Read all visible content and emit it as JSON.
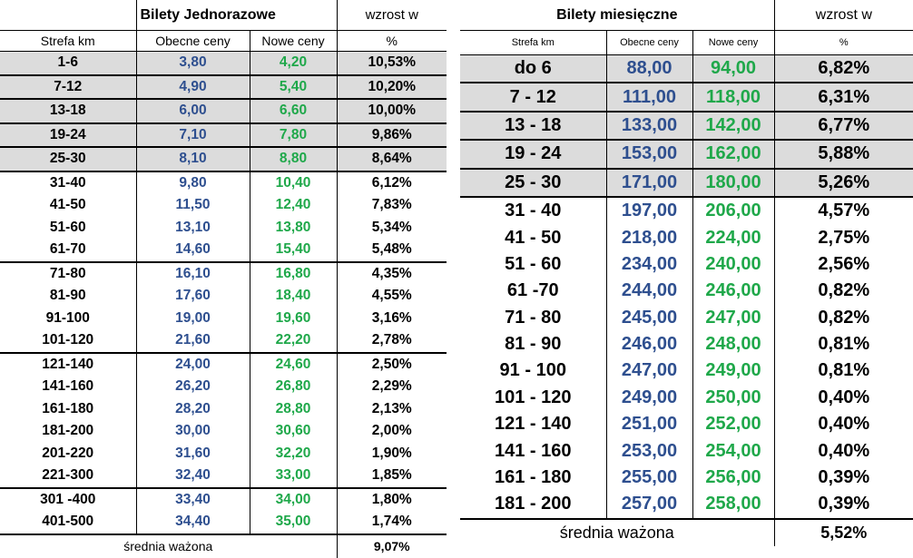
{
  "single": {
    "title": "Bilety  Jednorazowe",
    "growth_header": "wzrost  w",
    "col_zone": "Strefa km",
    "col_current": "Obecne ceny",
    "col_new": "Nowe ceny",
    "col_pct": "%",
    "rows": [
      {
        "zone": "1-6",
        "current": "3,80",
        "new": "4,20",
        "pct": "10,53%"
      },
      {
        "zone": "7-12",
        "current": "4,90",
        "new": "5,40",
        "pct": "10,20%"
      },
      {
        "zone": "13-18",
        "current": "6,00",
        "new": "6,60",
        "pct": "10,00%"
      },
      {
        "zone": "19-24",
        "current": "7,10",
        "new": "7,80",
        "pct": "9,86%"
      },
      {
        "zone": "25-30",
        "current": "8,10",
        "new": "8,80",
        "pct": "8,64%"
      },
      {
        "zone": "31-40",
        "current": "9,80",
        "new": "10,40",
        "pct": "6,12%"
      },
      {
        "zone": "41-50",
        "current": "11,50",
        "new": "12,40",
        "pct": "7,83%"
      },
      {
        "zone": "51-60",
        "current": "13,10",
        "new": "13,80",
        "pct": "5,34%"
      },
      {
        "zone": "61-70",
        "current": "14,60",
        "new": "15,40",
        "pct": "5,48%"
      },
      {
        "zone": "71-80",
        "current": "16,10",
        "new": "16,80",
        "pct": "4,35%"
      },
      {
        "zone": "81-90",
        "current": "17,60",
        "new": "18,40",
        "pct": "4,55%"
      },
      {
        "zone": "91-100",
        "current": "19,00",
        "new": "19,60",
        "pct": "3,16%"
      },
      {
        "zone": "101-120",
        "current": "21,60",
        "new": "22,20",
        "pct": "2,78%"
      },
      {
        "zone": "121-140",
        "current": "24,00",
        "new": "24,60",
        "pct": "2,50%"
      },
      {
        "zone": "141-160",
        "current": "26,20",
        "new": "26,80",
        "pct": "2,29%"
      },
      {
        "zone": "161-180",
        "current": "28,20",
        "new": "28,80",
        "pct": "2,13%"
      },
      {
        "zone": "181-200",
        "current": "30,00",
        "new": "30,60",
        "pct": "2,00%"
      },
      {
        "zone": "201-220",
        "current": "31,60",
        "new": "32,20",
        "pct": "1,90%"
      },
      {
        "zone": "221-300",
        "current": "32,40",
        "new": "33,00",
        "pct": "1,85%"
      },
      {
        "zone": "301 -400",
        "current": "33,40",
        "new": "34,00",
        "pct": "1,80%"
      },
      {
        "zone": "401-500",
        "current": "34,40",
        "new": "35,00",
        "pct": "1,74%"
      }
    ],
    "footer_label": "średnia ważona",
    "footer_value": "9,07%"
  },
  "monthly": {
    "title": "Bilety miesięczne",
    "growth_header": "wzrost  w",
    "col_zone": "Strefa km",
    "col_current": "Obecne ceny",
    "col_new": "Nowe ceny",
    "col_pct": "%",
    "rows": [
      {
        "zone": "do 6",
        "current": "88,00",
        "new": "94,00",
        "pct": "6,82%"
      },
      {
        "zone": "7 - 12",
        "current": "111,00",
        "new": "118,00",
        "pct": "6,31%"
      },
      {
        "zone": "13 - 18",
        "current": "133,00",
        "new": "142,00",
        "pct": "6,77%"
      },
      {
        "zone": "19 - 24",
        "current": "153,00",
        "new": "162,00",
        "pct": "5,88%"
      },
      {
        "zone": "25 - 30",
        "current": "171,00",
        "new": "180,00",
        "pct": "5,26%"
      },
      {
        "zone": "31 - 40",
        "current": "197,00",
        "new": "206,00",
        "pct": "4,57%"
      },
      {
        "zone": "41 - 50",
        "current": "218,00",
        "new": "224,00",
        "pct": "2,75%"
      },
      {
        "zone": "51 - 60",
        "current": "234,00",
        "new": "240,00",
        "pct": "2,56%"
      },
      {
        "zone": "61 -70",
        "current": "244,00",
        "new": "246,00",
        "pct": "0,82%"
      },
      {
        "zone": "71 - 80",
        "current": "245,00",
        "new": "247,00",
        "pct": "0,82%"
      },
      {
        "zone": "81 - 90",
        "current": "246,00",
        "new": "248,00",
        "pct": "0,81%"
      },
      {
        "zone": "91 - 100",
        "current": "247,00",
        "new": "249,00",
        "pct": "0,81%"
      },
      {
        "zone": "101 - 120",
        "current": "249,00",
        "new": "250,00",
        "pct": "0,40%"
      },
      {
        "zone": "121 - 140",
        "current": "251,00",
        "new": "252,00",
        "pct": "0,40%"
      },
      {
        "zone": "141 - 160",
        "current": "253,00",
        "new": "254,00",
        "pct": "0,40%"
      },
      {
        "zone": "161 - 180",
        "current": "255,00",
        "new": "256,00",
        "pct": "0,39%"
      },
      {
        "zone": "181 - 200",
        "current": "257,00",
        "new": "258,00",
        "pct": "0,39%"
      }
    ],
    "footer_label": "średnia ważona",
    "footer_value": "5,52%"
  }
}
